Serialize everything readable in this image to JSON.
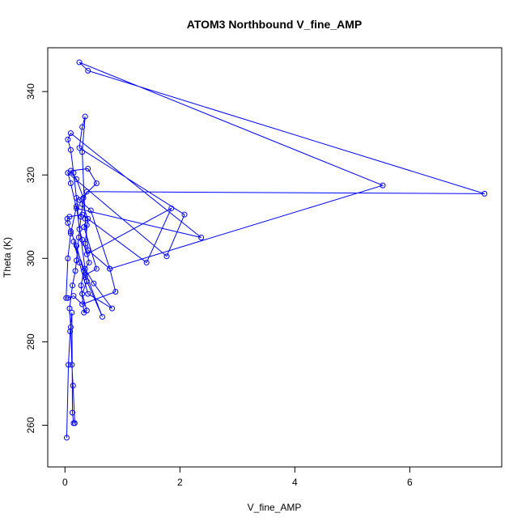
{
  "chart_data": {
    "type": "line",
    "title": "ATOM3 Northbound V_fine_AMP",
    "xlabel": "V_fine_AMP",
    "ylabel": "Theta (K)",
    "xlim": [
      -0.3,
      7.6
    ],
    "ylim": [
      250,
      350.5
    ],
    "xticks": [
      0,
      2,
      4,
      6
    ],
    "yticks": [
      260,
      280,
      300,
      320,
      340
    ],
    "xtick_labels": [
      "0",
      "2",
      "4",
      "6"
    ],
    "ytick_labels": [
      "260",
      "280",
      "300",
      "320",
      "340"
    ],
    "grid": false,
    "legend": "none",
    "marker": "open-circle",
    "line_color": "#0000ff",
    "series": [
      {
        "color": "#0000ff",
        "x": [
          0.03,
          0.06,
          0.09,
          0.12,
          0.13,
          0.15,
          0.17,
          0.14,
          0.12,
          0.1,
          0.08,
          0.13,
          0.18,
          0.2,
          0.24,
          0.28,
          0.32,
          0.2,
          0.1,
          0.4,
          0.55,
          0.25,
          0.45,
          0.78,
          0.88,
          0.3,
          0.15,
          0.05,
          0.02,
          0.05,
          0.1,
          0.2,
          0.35,
          0.5,
          0.82,
          0.4,
          0.25,
          0.15,
          0.65,
          0.35,
          0.2,
          0.1,
          0.05,
          0.04,
          0.08,
          0.3,
          1.42,
          1.85,
          0.38,
          0.3,
          0.25,
          0.2,
          0.15,
          0.1,
          0.05,
          0.1,
          2.37,
          0.2,
          0.1,
          0.05,
          1.77,
          2.08,
          0.25,
          0.3,
          0.35,
          0.3,
          0.35,
          0.4,
          0.78,
          5.53,
          0.25,
          0.4,
          7.3,
          0.38,
          0.3,
          0.4,
          0.35,
          0.42,
          0.33,
          0.28,
          0.33,
          0.38,
          0.3,
          0.38,
          0.35,
          0.55,
          0.33,
          0.38
        ],
        "y": [
          257.0,
          274.5,
          282.5,
          287.0,
          263.0,
          260.5,
          260.5,
          269.5,
          274.5,
          283.5,
          288.0,
          293.5,
          297.0,
          299.5,
          305.0,
          310.0,
          314.5,
          319.0,
          321.0,
          321.5,
          318.0,
          314.0,
          311.5,
          297.5,
          292.0,
          289.0,
          291.0,
          290.5,
          290.5,
          300.0,
          306.0,
          312.5,
          297.5,
          294.0,
          288.0,
          291.5,
          299.0,
          304.0,
          286.0,
          295.5,
          303.0,
          306.5,
          308.5,
          309.5,
          310.0,
          310.5,
          299.0,
          312.0,
          301.0,
          304.5,
          307.0,
          314.5,
          320.5,
          326.0,
          328.5,
          330.0,
          305.0,
          312.0,
          318.0,
          320.5,
          300.5,
          310.5,
          326.5,
          331.5,
          334.0,
          325.5,
          309.5,
          302.0,
          297.5,
          317.5,
          347.0,
          345.0,
          315.5,
          316.0,
          313.0,
          309.5,
          303.5,
          299.0,
          297.0,
          293.5,
          287.0,
          287.5,
          291.5,
          294.5,
          296.0,
          297.5,
          307.5,
          308.0
        ]
      }
    ]
  }
}
